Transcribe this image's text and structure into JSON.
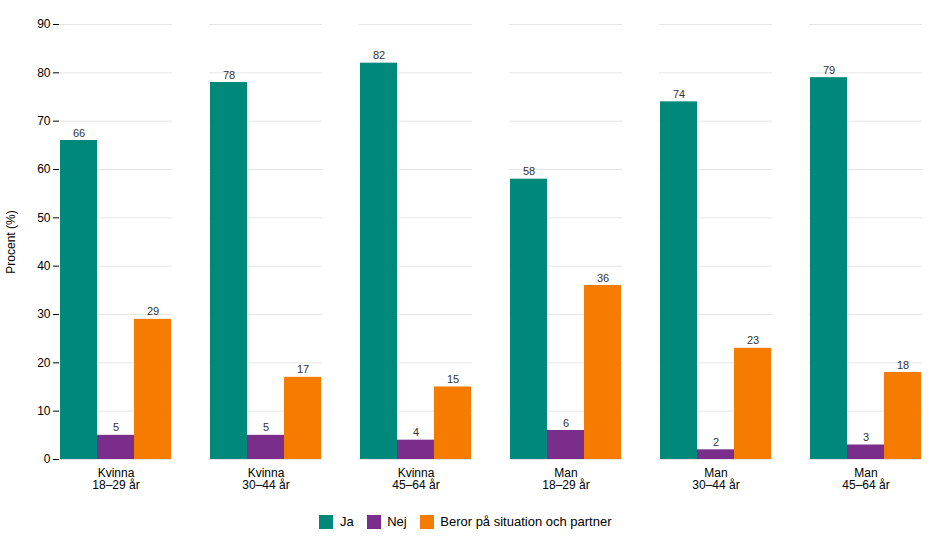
{
  "chart_data": {
    "type": "bar",
    "categories": [
      "Kvinna\n18–29 år",
      "Kvinna\n30–44 år",
      "Kvinna\n45–64 år",
      "Man\n18–29 år",
      "Man\n30–44 år",
      "Man\n45–64 år"
    ],
    "series": [
      {
        "name": "Ja",
        "color": "#00897B",
        "values": [
          66,
          78,
          82,
          58,
          74,
          79
        ]
      },
      {
        "name": "Nej",
        "color": "#7B2D8B",
        "values": [
          5,
          5,
          4,
          6,
          2,
          3
        ]
      },
      {
        "name": "Beror på situation och partner",
        "color": "#F57C00",
        "values": [
          29,
          17,
          15,
          36,
          23,
          18
        ]
      }
    ],
    "ylabel": "Procent (%)",
    "ylim": [
      0,
      90
    ],
    "yticks": [
      0,
      10,
      20,
      30,
      40,
      50,
      60,
      70,
      80,
      90
    ],
    "grid": true,
    "data_labels": true,
    "legend": "bottom"
  }
}
